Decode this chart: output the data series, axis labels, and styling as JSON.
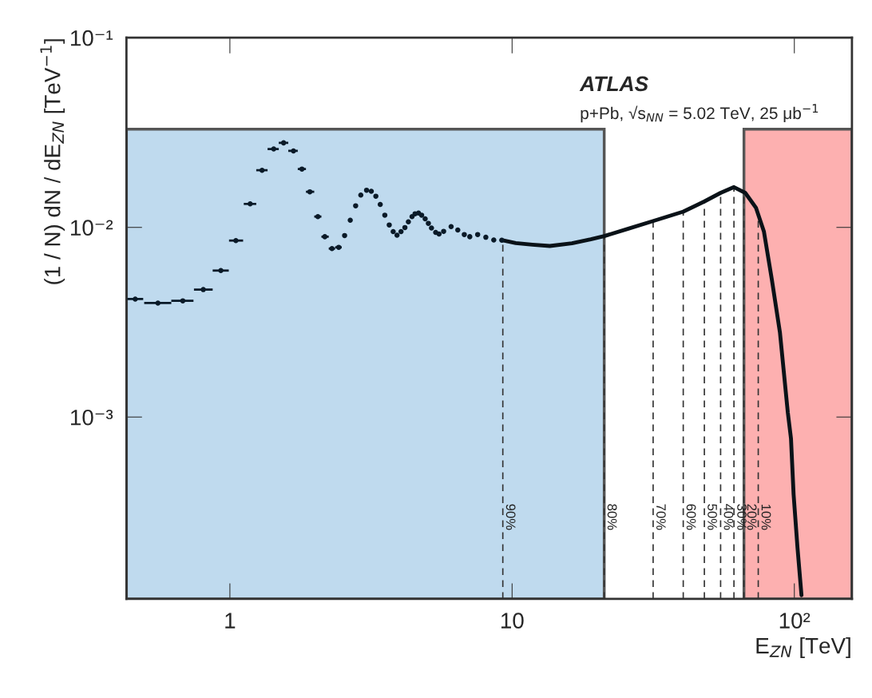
{
  "chart_data": {
    "type": "scatter",
    "title": "ATLAS",
    "subtitle": "p+Pb, √s$_{NN}$ = 5.02 TeV, 25 μb$^{−1}$",
    "xlabel": "E$_{ZN}$ [TeV]",
    "ylabel": "(1 / N) dN / dE$_{ZN}$ [TeV$^{−1}$]",
    "log": "xy",
    "grid": false,
    "xlim": [
      0.43,
      160
    ],
    "ylim": [
      0.00011,
      0.1
    ],
    "xticks": [
      1,
      10,
      {
        "value": 100,
        "label": "10²"
      }
    ],
    "yticks": [
      {
        "value": 0.001,
        "label": "10⁻³"
      },
      {
        "value": 0.01,
        "label": "10⁻²"
      },
      {
        "value": 0.1,
        "label": "10⁻¹"
      }
    ],
    "series": [
      {
        "type": "scatter",
        "marker": "circle",
        "color": "#0a1a28",
        "x": [
          0.462,
          0.556,
          0.681,
          0.805,
          0.929,
          1.05,
          1.18,
          1.3,
          1.43,
          1.55,
          1.68,
          1.8,
          1.92,
          2.05,
          2.17,
          2.3,
          2.43,
          2.55,
          2.67,
          2.79,
          2.91,
          3.05,
          3.17,
          3.29,
          3.41,
          3.54,
          3.67,
          3.79,
          3.91,
          4.04,
          4.17,
          4.29,
          4.42,
          4.53,
          4.66,
          4.78,
          4.92,
          5.05,
          5.18,
          5.36,
          5.51,
          5.72,
          6.08,
          6.42,
          6.77,
          7.08,
          7.55,
          8.07,
          8.61,
          9.19
        ],
        "values": [
          0.00419,
          0.00399,
          0.0041,
          0.0047,
          0.00592,
          0.00852,
          0.0133,
          0.02,
          0.0259,
          0.0279,
          0.0253,
          0.0203,
          0.0154,
          0.0114,
          0.00893,
          0.00773,
          0.00785,
          0.00906,
          0.0109,
          0.013,
          0.0148,
          0.0157,
          0.0155,
          0.0146,
          0.0132,
          0.0116,
          0.0103,
          0.0095,
          0.0091,
          0.0095,
          0.00998,
          0.0107,
          0.0114,
          0.0118,
          0.0119,
          0.0116,
          0.0111,
          0.0105,
          0.00993,
          0.00941,
          0.00923,
          0.00953,
          0.0101,
          0.00969,
          0.00917,
          0.00893,
          0.00917,
          0.00887,
          0.00858,
          0.00856
        ],
        "xerrors": [
          [
            0.433,
            0.493
          ],
          [
            0.497,
            0.62
          ],
          [
            0.62,
            0.743
          ],
          [
            0.746,
            0.869
          ],
          [
            0.869,
            0.991
          ],
          [
            0.993,
            1.114
          ],
          [
            1.12,
            1.24
          ],
          [
            1.24,
            1.36
          ],
          [
            1.36,
            1.49
          ],
          [
            1.49,
            1.61
          ],
          [
            1.61,
            1.74
          ],
          [
            1.74,
            1.86
          ],
          [
            1.86,
            1.99
          ],
          [
            1.99,
            2.11
          ],
          [
            2.11,
            2.24
          ],
          [
            2.24,
            2.36
          ],
          [
            2.36,
            2.49
          ],
          null,
          null,
          null,
          null,
          null,
          null,
          null,
          null,
          null,
          null,
          null,
          null,
          null,
          null,
          null,
          null,
          null,
          null,
          null,
          null,
          null,
          null,
          null,
          null,
          null,
          null,
          null,
          null,
          null,
          null,
          null,
          null,
          null
        ]
      },
      {
        "type": "line",
        "marker": "none",
        "color": "#0a1218",
        "x": [
          9.19,
          10.3,
          11.8,
          13.6,
          16.3,
          19.0,
          21.2,
          25.8,
          31.6,
          40.4,
          48.0,
          54.8,
          61.1,
          67.0,
          73.1,
          78.0,
          83.2,
          88.9,
          94.8,
          97.3,
          99.4,
          102.6,
          106
        ],
        "values": [
          0.00856,
          0.00826,
          0.00811,
          0.00798,
          0.00824,
          0.00865,
          0.00899,
          0.00984,
          0.0108,
          0.0121,
          0.0137,
          0.0152,
          0.0163,
          0.0152,
          0.0127,
          0.00953,
          0.00533,
          0.0028,
          0.00106,
          0.000771,
          0.000391,
          0.000205,
          0.000115
        ]
      }
    ],
    "bands": [
      {
        "axis": "x",
        "from": 0.43,
        "to": 21.2,
        "color": "#bfdaee"
      },
      {
        "axis": "x",
        "from": 66.3,
        "to": 160,
        "color": "#fdb0b0"
      }
    ],
    "ref_lines": [
      {
        "axis": "x",
        "value": 9.27,
        "line_style": "dashed"
      },
      {
        "axis": "x",
        "value": 21.2,
        "line_style": "dashed"
      },
      {
        "axis": "x",
        "value": 31.6,
        "line_style": "dashed"
      },
      {
        "axis": "x",
        "value": 40.4,
        "line_style": "dashed"
      },
      {
        "axis": "x",
        "value": 48.0,
        "line_style": "dashed"
      },
      {
        "axis": "x",
        "value": 54.8,
        "line_style": "dashed"
      },
      {
        "axis": "x",
        "value": 61.1,
        "line_style": "dashed"
      },
      {
        "axis": "x",
        "value": 66.3,
        "line_style": "dashed"
      },
      {
        "axis": "x",
        "value": 74.5,
        "line_style": "dashed"
      }
    ],
    "annotations": [
      {
        "text": "90%",
        "x": 9.27
      },
      {
        "text": "80%",
        "x": 21.2
      },
      {
        "text": "70%",
        "x": 31.6
      },
      {
        "text": "60%",
        "x": 40.4
      },
      {
        "text": "50%",
        "x": 48.0
      },
      {
        "text": "40%",
        "x": 54.8
      },
      {
        "text": "30%",
        "x": 61.1
      },
      {
        "text": "20%",
        "x": 66.3
      },
      {
        "text": "10%",
        "x": 74.5
      }
    ]
  }
}
